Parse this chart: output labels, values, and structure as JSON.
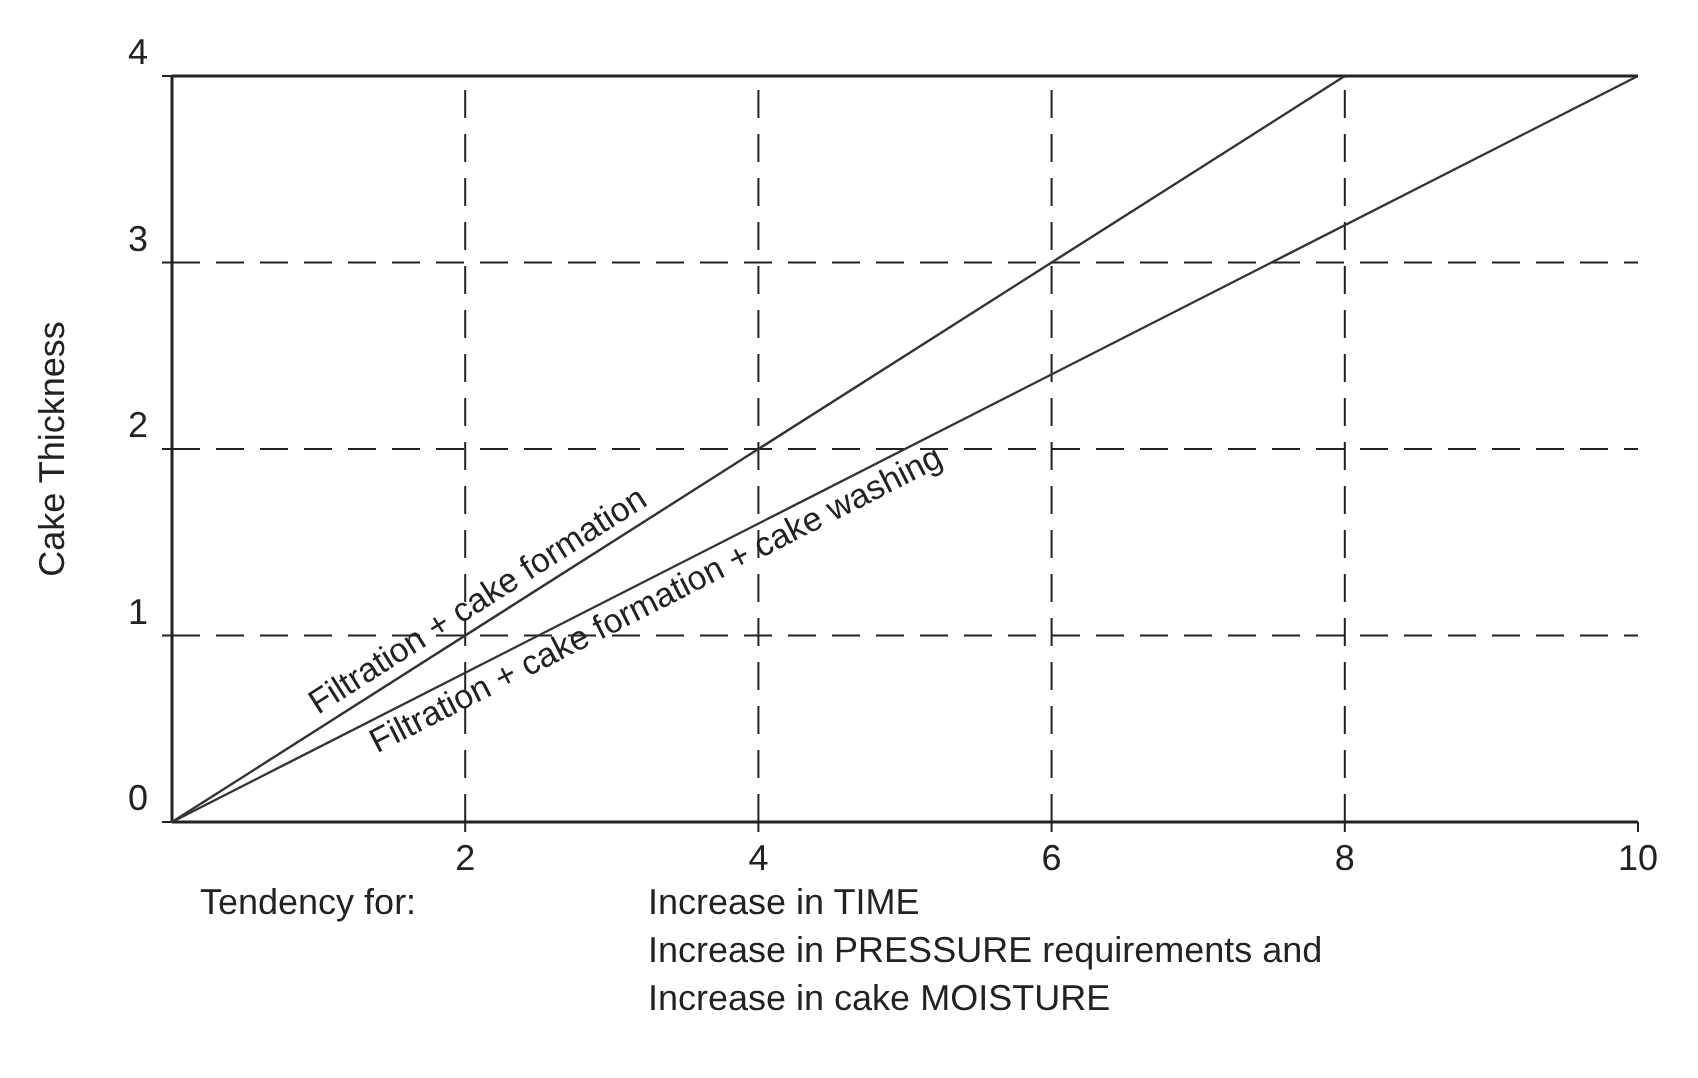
{
  "chart_data": {
    "type": "line",
    "ylabel": "Cake Thickness",
    "xlim": [
      0,
      10
    ],
    "ylim": [
      0,
      4
    ],
    "xticks": [
      2,
      4,
      6,
      8,
      10
    ],
    "yticks": [
      0,
      1,
      2,
      3,
      4
    ],
    "grid": true,
    "line_style": "solid",
    "marker": "none",
    "series": [
      {
        "name": "Filtration + cake formation",
        "color": "#333333",
        "x": [
          0,
          8
        ],
        "values": [
          0,
          4
        ]
      },
      {
        "name": "Filtration + cake formation + cake washing",
        "color": "#333333",
        "x": [
          0,
          10
        ],
        "values": [
          0,
          4
        ]
      }
    ],
    "annotations": [
      "Tendency for:",
      "Increase in TIME",
      "Increase in PRESSURE requirements and",
      "Increase in cake MOISTURE"
    ]
  }
}
